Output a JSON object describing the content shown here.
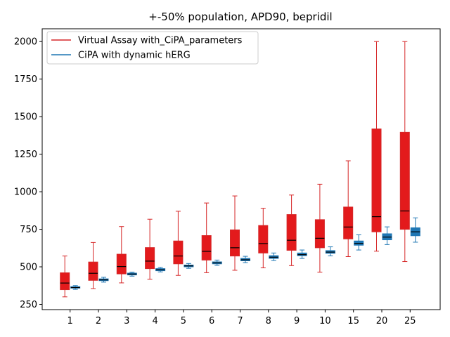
{
  "chart_data": {
    "type": "boxplot",
    "title": "+-50% population, APD90, bepridil",
    "xlabel": "",
    "ylabel": "",
    "categories": [
      "1",
      "2",
      "3",
      "4",
      "5",
      "6",
      "7",
      "8",
      "9",
      "10",
      "15",
      "20",
      "25"
    ],
    "ylim": [
      215,
      2085
    ],
    "yticks": [
      250,
      500,
      750,
      1000,
      1250,
      1500,
      1750,
      2000
    ],
    "grid": false,
    "legend_position": "upper-left",
    "series": [
      {
        "name": "Virtual Assay with_CiPA_parameters",
        "color": "#d62728",
        "box_color": "#e31a1c",
        "median_color": "#000000",
        "boxes": [
          {
            "whislo": 300,
            "q1": 348,
            "med": 392,
            "q3": 460,
            "whishi": 572
          },
          {
            "whislo": 355,
            "q1": 410,
            "med": 457,
            "q3": 532,
            "whishi": 662
          },
          {
            "whislo": 393,
            "q1": 453,
            "med": 502,
            "q3": 584,
            "whishi": 768
          },
          {
            "whislo": 417,
            "q1": 488,
            "med": 538,
            "q3": 628,
            "whishi": 817
          },
          {
            "whislo": 443,
            "q1": 520,
            "med": 572,
            "q3": 672,
            "whishi": 870
          },
          {
            "whislo": 461,
            "q1": 545,
            "med": 603,
            "q3": 708,
            "whishi": 925
          },
          {
            "whislo": 477,
            "q1": 572,
            "med": 627,
            "q3": 746,
            "whishi": 972
          },
          {
            "whislo": 493,
            "q1": 592,
            "med": 655,
            "q3": 775,
            "whishi": 890
          },
          {
            "whislo": 508,
            "q1": 610,
            "med": 677,
            "q3": 848,
            "whishi": 978
          },
          {
            "whislo": 464,
            "q1": 627,
            "med": 690,
            "q3": 814,
            "whishi": 1050
          },
          {
            "whislo": 568,
            "q1": 686,
            "med": 765,
            "q3": 898,
            "whishi": 1206
          },
          {
            "whislo": 604,
            "q1": 733,
            "med": 834,
            "q3": 1418,
            "whishi": 2000
          },
          {
            "whislo": 535,
            "q1": 750,
            "med": 872,
            "q3": 1396,
            "whishi": 2000
          }
        ]
      },
      {
        "name": "CiPA with dynamic hERG",
        "color": "#1f77b4",
        "box_color": "#1f77b4",
        "median_color": "#000000",
        "boxes": [
          {
            "whislo": 350,
            "q1": 358,
            "med": 362,
            "q3": 368,
            "whishi": 375
          },
          {
            "whislo": 398,
            "q1": 408,
            "med": 413,
            "q3": 420,
            "whishi": 430
          },
          {
            "whislo": 438,
            "q1": 446,
            "med": 452,
            "q3": 458,
            "whishi": 464
          },
          {
            "whislo": 466,
            "q1": 474,
            "med": 480,
            "q3": 488,
            "whishi": 496
          },
          {
            "whislo": 490,
            "q1": 500,
            "med": 506,
            "q3": 512,
            "whishi": 522
          },
          {
            "whislo": 510,
            "q1": 520,
            "med": 526,
            "q3": 533,
            "whishi": 545
          },
          {
            "whislo": 528,
            "q1": 540,
            "med": 547,
            "q3": 556,
            "whishi": 570
          },
          {
            "whislo": 542,
            "q1": 556,
            "med": 564,
            "q3": 574,
            "whishi": 592
          },
          {
            "whislo": 556,
            "q1": 574,
            "med": 581,
            "q3": 592,
            "whishi": 612
          },
          {
            "whislo": 573,
            "q1": 590,
            "med": 598,
            "q3": 608,
            "whishi": 633
          },
          {
            "whislo": 612,
            "q1": 644,
            "med": 656,
            "q3": 672,
            "whishi": 713
          },
          {
            "whislo": 648,
            "q1": 680,
            "med": 698,
            "q3": 720,
            "whishi": 766
          },
          {
            "whislo": 664,
            "q1": 707,
            "med": 733,
            "q3": 760,
            "whishi": 826
          }
        ]
      }
    ]
  }
}
